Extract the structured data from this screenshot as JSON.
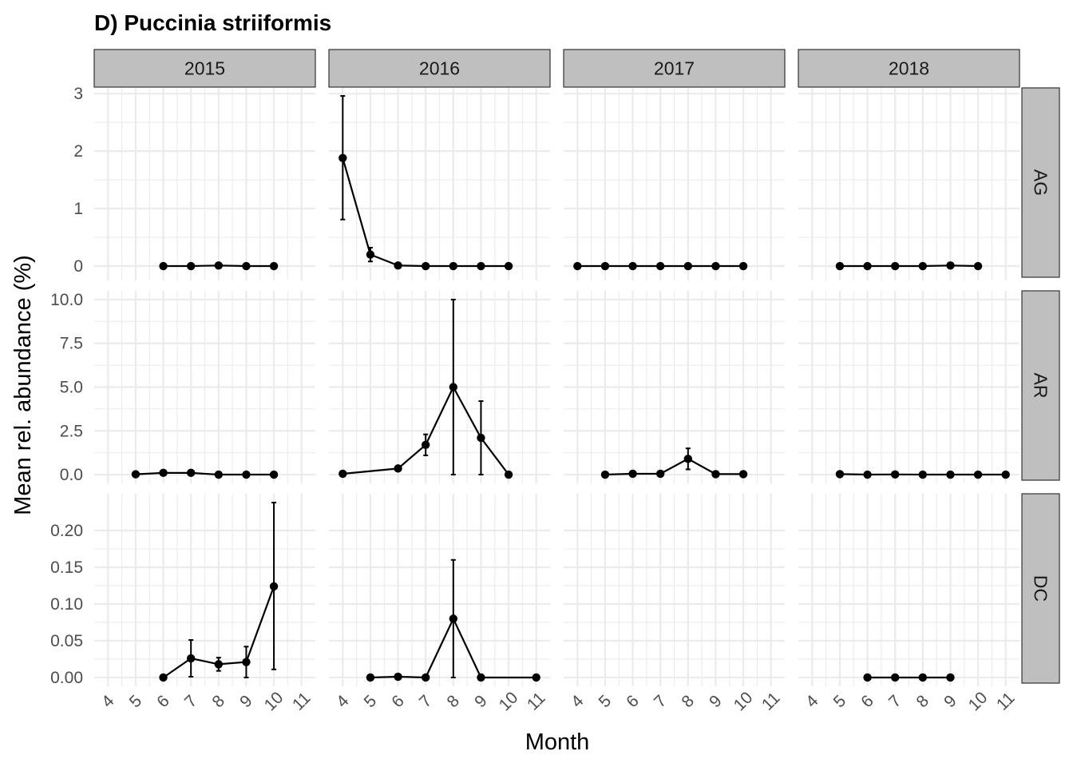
{
  "chart_data": {
    "type": "line",
    "title": "D) Puccinia striiformis",
    "xlabel": "Month",
    "ylabel": "Mean rel. abundance (%)",
    "facet_columns": [
      "2015",
      "2016",
      "2017",
      "2018"
    ],
    "facet_rows": [
      "AG",
      "AR",
      "DC"
    ],
    "x_ticks": [
      4,
      5,
      6,
      7,
      8,
      9,
      10,
      11
    ],
    "xlim": [
      3.5,
      11.5
    ],
    "grid": true,
    "row_scales": {
      "AG": {
        "ylim": [
          -0.25,
          3.1
        ],
        "ticks": [
          0,
          1,
          2,
          3
        ],
        "tick_labels": [
          "0",
          "1",
          "2",
          "3"
        ]
      },
      "AR": {
        "ylim": [
          -0.5,
          10.5
        ],
        "ticks": [
          0,
          2.5,
          5,
          7.5,
          10
        ],
        "tick_labels": [
          "0.0",
          "2.5",
          "5.0",
          "7.5",
          "10.0"
        ]
      },
      "DC": {
        "ylim": [
          -0.012,
          0.25
        ],
        "ticks": [
          0,
          0.05,
          0.1,
          0.15,
          0.2
        ],
        "tick_labels": [
          "0.00",
          "0.05",
          "0.10",
          "0.15",
          "0.20"
        ]
      }
    },
    "panels": [
      {
        "row": "AG",
        "col": "2015",
        "x": [
          6,
          7,
          8,
          9,
          10
        ],
        "y": [
          0,
          0,
          0.01,
          0,
          0
        ],
        "ymin": [
          0,
          0,
          0,
          0,
          0
        ],
        "ymax": [
          0,
          0,
          0.02,
          0,
          0
        ]
      },
      {
        "row": "AG",
        "col": "2016",
        "x": [
          4,
          5,
          6,
          7,
          8,
          9,
          10
        ],
        "y": [
          1.88,
          0.2,
          0.01,
          0,
          0,
          0,
          0
        ],
        "ymin": [
          0.81,
          0.08,
          0,
          0,
          0,
          0,
          0
        ],
        "ymax": [
          2.96,
          0.32,
          0.02,
          0,
          0,
          0,
          0
        ]
      },
      {
        "row": "AG",
        "col": "2017",
        "x": [
          4,
          5,
          6,
          7,
          8,
          9,
          10
        ],
        "y": [
          0,
          0,
          0,
          0,
          0,
          0,
          0
        ],
        "ymin": [
          0,
          0,
          0,
          0,
          0,
          0,
          0
        ],
        "ymax": [
          0,
          0,
          0,
          0,
          0,
          0,
          0
        ]
      },
      {
        "row": "AG",
        "col": "2018",
        "x": [
          5,
          6,
          7,
          8,
          9,
          10
        ],
        "y": [
          0,
          0,
          0,
          0,
          0.01,
          0
        ],
        "ymin": [
          0,
          0,
          0,
          0,
          0,
          0
        ],
        "ymax": [
          0,
          0,
          0,
          0,
          0.02,
          0
        ]
      },
      {
        "row": "AR",
        "col": "2015",
        "x": [
          5,
          6,
          7,
          8,
          9,
          10
        ],
        "y": [
          0.02,
          0.1,
          0.1,
          0,
          0,
          0
        ],
        "ymin": [
          0,
          0,
          0,
          0,
          0,
          0
        ],
        "ymax": [
          0.04,
          0.2,
          0.2,
          0,
          0,
          0
        ]
      },
      {
        "row": "AR",
        "col": "2016",
        "x": [
          4,
          6,
          7,
          8,
          9,
          10
        ],
        "y": [
          0.05,
          0.35,
          1.7,
          5.0,
          2.1,
          0
        ],
        "ymin": [
          0,
          0.2,
          1.1,
          0,
          0,
          0
        ],
        "ymax": [
          0.1,
          0.5,
          2.3,
          10.0,
          4.2,
          0
        ]
      },
      {
        "row": "AR",
        "col": "2017",
        "x": [
          5,
          6,
          7,
          8,
          9,
          10
        ],
        "y": [
          0,
          0.05,
          0.05,
          0.9,
          0.03,
          0.03
        ],
        "ymin": [
          0,
          0,
          0,
          0.3,
          0,
          0
        ],
        "ymax": [
          0,
          0.1,
          0.1,
          1.5,
          0.06,
          0.06
        ]
      },
      {
        "row": "AR",
        "col": "2018",
        "x": [
          5,
          6,
          7,
          8,
          9,
          10,
          11
        ],
        "y": [
          0.03,
          0,
          0.01,
          0,
          0,
          0,
          0
        ],
        "ymin": [
          0,
          0,
          0,
          0,
          0,
          0,
          0
        ],
        "ymax": [
          0.06,
          0,
          0.02,
          0,
          0,
          0,
          0
        ]
      },
      {
        "row": "DC",
        "col": "2015",
        "x": [
          6,
          7,
          8,
          9,
          10
        ],
        "y": [
          0,
          0.026,
          0.018,
          0.021,
          0.124
        ],
        "ymin": [
          0,
          0.001,
          0.009,
          0,
          0.011
        ],
        "ymax": [
          0,
          0.051,
          0.027,
          0.042,
          0.238
        ]
      },
      {
        "row": "DC",
        "col": "2016",
        "x": [
          5,
          6,
          7,
          8,
          9,
          11
        ],
        "y": [
          0,
          0.001,
          0,
          0.08,
          0,
          0
        ],
        "ymin": [
          0,
          0,
          0,
          0,
          0,
          0
        ],
        "ymax": [
          0,
          0.002,
          0,
          0.16,
          0,
          0
        ]
      },
      {
        "row": "DC",
        "col": "2017",
        "x": [],
        "y": [],
        "ymin": [],
        "ymax": []
      },
      {
        "row": "DC",
        "col": "2018",
        "x": [
          6,
          7,
          8,
          9
        ],
        "y": [
          0,
          0,
          0,
          0
        ],
        "ymin": [
          0,
          0,
          0,
          0
        ],
        "ymax": [
          0,
          0,
          0,
          0
        ]
      }
    ]
  }
}
